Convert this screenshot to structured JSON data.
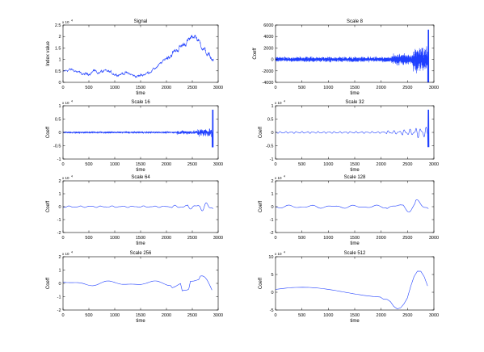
{
  "figure": {
    "background": "#ffffff",
    "line_color": "#1f3fff",
    "axis_color": "#000000"
  },
  "chart_data": [
    {
      "type": "line",
      "title": "Signal",
      "xlabel": "time",
      "ylabel": "Index value",
      "xlim": [
        0,
        3000
      ],
      "ylim": [
        0,
        2.5
      ],
      "exponent": "4",
      "xticks": [
        "0",
        "500",
        "1000",
        "1500",
        "2000",
        "2500",
        "3000"
      ],
      "yticks": [
        "0",
        "0.5",
        "1",
        "1.5",
        "2",
        "2.5"
      ],
      "kind": "signal",
      "grid": false
    },
    {
      "type": "line",
      "title": "Scale 8",
      "xlabel": "time",
      "ylabel": "Coeff",
      "xlim": [
        0,
        3000
      ],
      "ylim": [
        -4000,
        6000
      ],
      "exponent": "",
      "xticks": [
        "0",
        "500",
        "1000",
        "1500",
        "2000",
        "2500",
        "3000"
      ],
      "yticks": [
        "-4000",
        "-2000",
        "0",
        "2000",
        "4000",
        "6000"
      ],
      "kind": "wavelet",
      "scale": 8,
      "grid": false
    },
    {
      "type": "line",
      "title": "Scale 16",
      "xlabel": "time",
      "ylabel": "Coeff",
      "xlim": [
        0,
        3000
      ],
      "ylim": [
        -1,
        1
      ],
      "exponent": "4",
      "xticks": [
        "0",
        "500",
        "1000",
        "1500",
        "2000",
        "2500",
        "3000"
      ],
      "yticks": [
        "-1",
        "-0.5",
        "0",
        "0.5",
        "1"
      ],
      "kind": "wavelet",
      "scale": 16,
      "grid": false
    },
    {
      "type": "line",
      "title": "Scale 32",
      "xlabel": "time",
      "ylabel": "Coeff",
      "xlim": [
        0,
        3000
      ],
      "ylim": [
        -1,
        1
      ],
      "exponent": "4",
      "xticks": [
        "0",
        "500",
        "1000",
        "1500",
        "2000",
        "2500",
        "3000"
      ],
      "yticks": [
        "-1",
        "-0.5",
        "0",
        "0.5",
        "1"
      ],
      "kind": "wavelet",
      "scale": 32,
      "grid": false
    },
    {
      "type": "line",
      "title": "Scale 64",
      "xlabel": "time",
      "ylabel": "Coeff",
      "xlim": [
        0,
        3000
      ],
      "ylim": [
        -2,
        2
      ],
      "exponent": "4",
      "xticks": [
        "0",
        "500",
        "1000",
        "1500",
        "2000",
        "2500",
        "3000"
      ],
      "yticks": [
        "-2",
        "-1",
        "0",
        "1",
        "2"
      ],
      "kind": "wavelet",
      "scale": 64,
      "grid": false
    },
    {
      "type": "line",
      "title": "Scale 128",
      "xlabel": "time",
      "ylabel": "Coeff",
      "xlim": [
        0,
        3000
      ],
      "ylim": [
        -2,
        2
      ],
      "exponent": "4",
      "xticks": [
        "0",
        "500",
        "1000",
        "1500",
        "2000",
        "2500",
        "3000"
      ],
      "yticks": [
        "-2",
        "-1",
        "0",
        "1",
        "2"
      ],
      "kind": "wavelet",
      "scale": 128,
      "grid": false
    },
    {
      "type": "line",
      "title": "Scale 256",
      "xlabel": "time",
      "ylabel": "Coeff",
      "xlim": [
        0,
        3000
      ],
      "ylim": [
        -2,
        2
      ],
      "exponent": "4",
      "xticks": [
        "0",
        "500",
        "1000",
        "1500",
        "2000",
        "2500",
        "3000"
      ],
      "yticks": [
        "-2",
        "-1",
        "0",
        "1",
        "2"
      ],
      "kind": "wavelet",
      "scale": 256,
      "grid": false
    },
    {
      "type": "line",
      "title": "Scale 512",
      "xlabel": "time",
      "ylabel": "Coeff",
      "xlim": [
        0,
        3000
      ],
      "ylim": [
        -5,
        10
      ],
      "exponent": "4",
      "xticks": [
        "0",
        "500",
        "1000",
        "1500",
        "2000",
        "2500",
        "3000"
      ],
      "yticks": [
        "-5",
        "0",
        "5",
        "10"
      ],
      "kind": "wavelet",
      "scale": 512,
      "grid": false
    }
  ]
}
